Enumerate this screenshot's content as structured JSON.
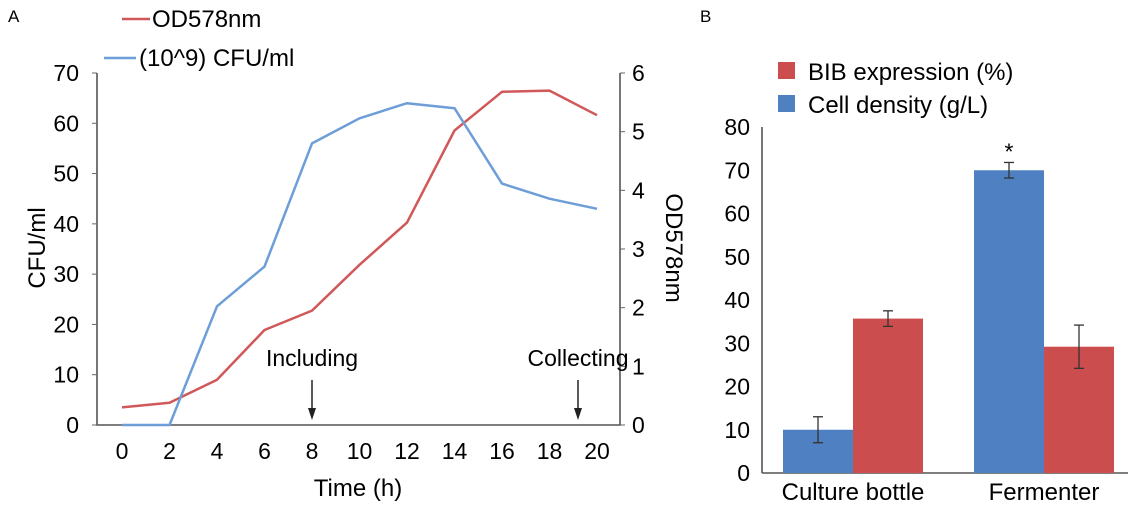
{
  "chart_data": [
    {
      "panel_label": "A",
      "type": "line",
      "xlabel": "Time (h)",
      "ylabel_left": "CFU/ml",
      "ylabel_right": "OD578nm",
      "x": [
        0,
        2,
        4,
        6,
        8,
        10,
        12,
        14,
        16,
        18,
        20
      ],
      "x_ticks": [
        "0",
        "2",
        "4",
        "6",
        "8",
        "10",
        "12",
        "14",
        "16",
        "18",
        "20"
      ],
      "ylim_left": [
        0,
        70
      ],
      "y_ticks_left": [
        "0",
        "10",
        "20",
        "30",
        "40",
        "50",
        "60",
        "70"
      ],
      "ylim_right": [
        0,
        6
      ],
      "y_ticks_right": [
        "0",
        "1",
        "2",
        "3",
        "4",
        "5",
        "6"
      ],
      "legend_position": "top-left",
      "series": [
        {
          "name": "OD578nm",
          "axis": "right",
          "color": "#d05858",
          "values": [
            0.3,
            0.38,
            0.77,
            1.62,
            1.95,
            2.73,
            3.45,
            5.02,
            5.68,
            5.7,
            5.28
          ]
        },
        {
          "name": "(10^9) CFU/ml",
          "axis": "left",
          "color": "#6d9ed8",
          "values": [
            0,
            0,
            23.6,
            31.5,
            56,
            61,
            64,
            63,
            48,
            45,
            43
          ]
        }
      ],
      "annotations": [
        {
          "text": "Including",
          "x": 8
        },
        {
          "text": "Collecting",
          "x": 19.2
        }
      ]
    },
    {
      "panel_label": "B",
      "type": "bar",
      "categories": [
        "Culture bottle",
        "Fermenter"
      ],
      "ylim": [
        0,
        80
      ],
      "y_ticks": [
        "0",
        "10",
        "20",
        "30",
        "40",
        "50",
        "60",
        "70",
        "80"
      ],
      "legend_position": "top-left",
      "series": [
        {
          "name": "Cell density (g/L)",
          "color": "#4e80c2",
          "values": [
            10,
            70
          ],
          "errors": [
            3,
            1.8
          ]
        },
        {
          "name": "BIB expression (%)",
          "color": "#cc4d4d",
          "values": [
            35.7,
            29.2
          ],
          "errors": [
            1.8,
            5
          ]
        }
      ],
      "legend_order": [
        "BIB expression (%)",
        "Cell density (g/L)"
      ],
      "significance": [
        {
          "category": "Fermenter",
          "series": "Cell density (g/L)",
          "label": "*"
        }
      ]
    }
  ]
}
